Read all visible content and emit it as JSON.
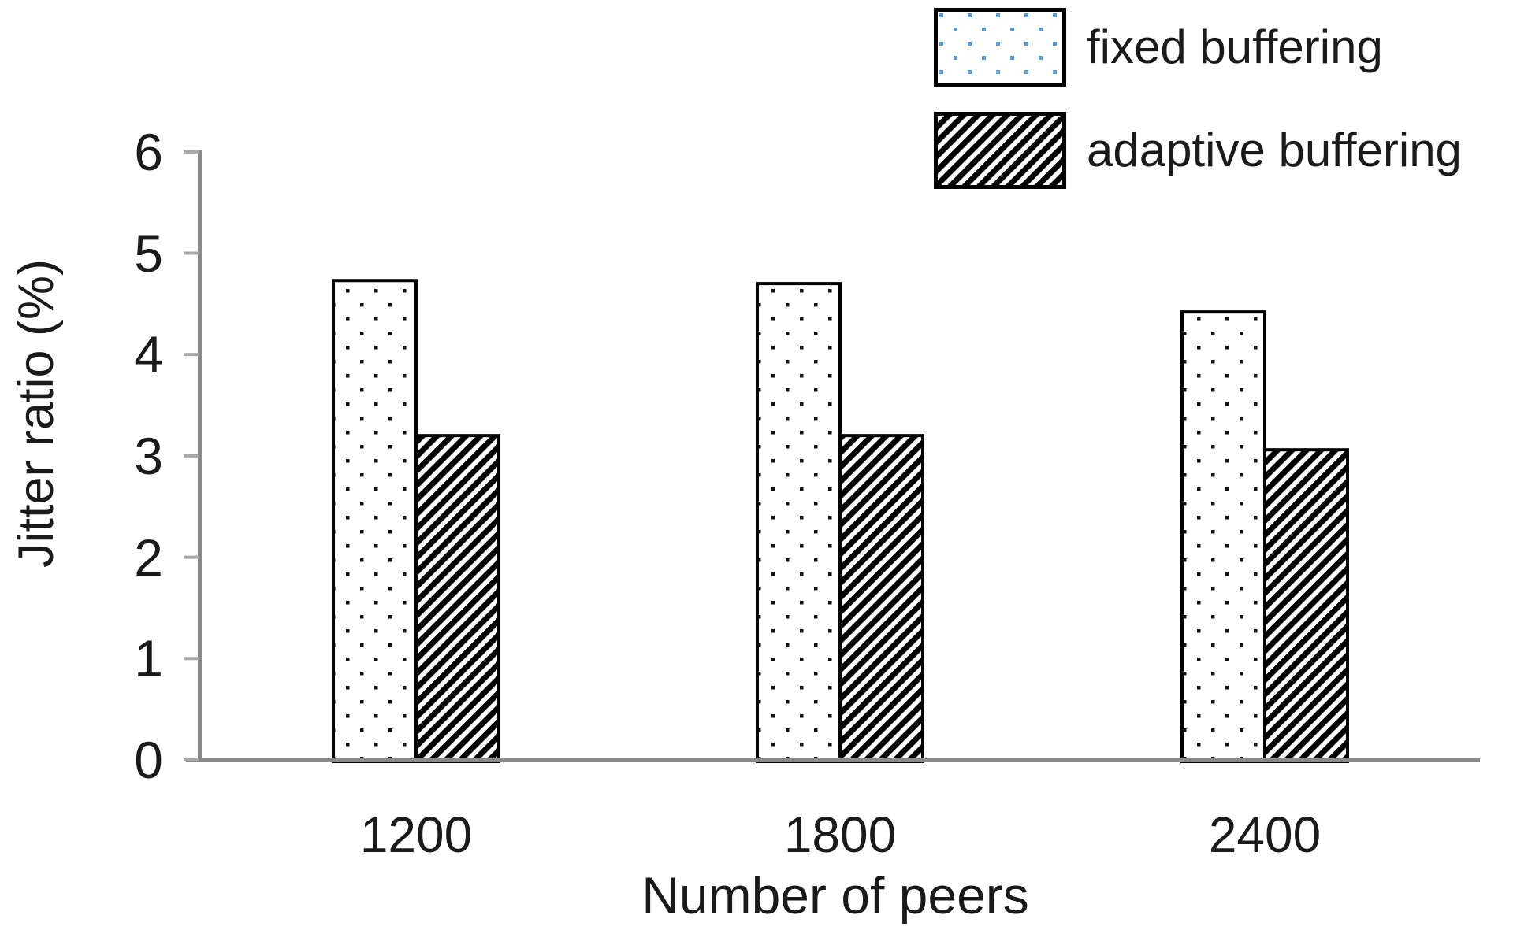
{
  "chart_data": {
    "type": "bar",
    "title": "",
    "categories": [
      "1200",
      "1800",
      "2400"
    ],
    "series": [
      {
        "name": "fixed buffering",
        "pattern": "dots",
        "values": [
          4.73,
          4.7,
          4.42
        ]
      },
      {
        "name": "adaptive buffering",
        "pattern": "diagonal-hatch",
        "values": [
          3.2,
          3.2,
          3.06
        ]
      }
    ],
    "xlabel": "Number of peers",
    "ylabel": "Jitter ratio (%)",
    "ylim": [
      0,
      6
    ],
    "yticks": [
      0,
      1,
      2,
      3,
      4,
      5,
      6
    ],
    "grid": false,
    "legend_position": "top-right"
  },
  "legend": {
    "items": [
      {
        "label": "fixed buffering",
        "swatch": "dots-blue"
      },
      {
        "label": "adaptive buffering",
        "swatch": "diagonal-hatch"
      }
    ]
  },
  "colors": {
    "background": "#ffffff",
    "axis_line": "#8a8a8a",
    "tick_mark": "#a8a8a8",
    "text": "#1a1a1a",
    "bar_border": "#000000",
    "bar_dot": "#111111",
    "hatch": "#000000",
    "legend_dot_blue": "#5b9bd5"
  }
}
